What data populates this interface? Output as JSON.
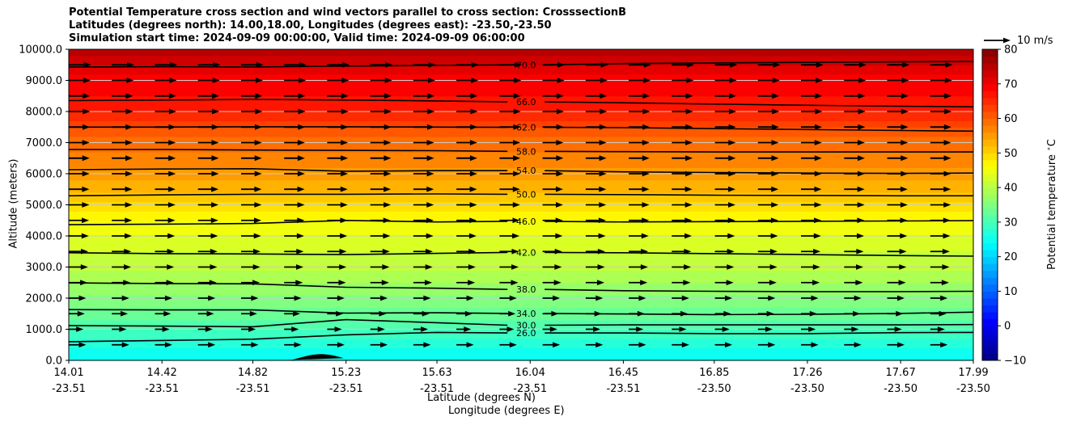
{
  "title": {
    "line1": "Potential Temperature cross section and wind vectors parallel to cross section: CrosssectionB",
    "line2": "Latitudes (degrees north): 14.00,18.00, Longitudes (degrees east): -23.50,-23.50",
    "line3": "Simulation start time: 2024-09-09 00:00:00, Valid time: 2024-09-09 06:00:00"
  },
  "axes": {
    "xlabel_lat": "Latitude (degrees N)",
    "xlabel_lon": "Longitude (degrees E)",
    "ylabel": "Altitude (meters)",
    "colorbar_label": "Potential temperature $^\\circ$C",
    "quiver_key_label": "10 m/s"
  },
  "chart_data": {
    "type": "contour_cross_section",
    "colormap": "jet",
    "x_ticks_lat": [
      "14.01",
      "14.42",
      "14.82",
      "15.23",
      "15.63",
      "16.04",
      "16.45",
      "16.85",
      "17.26",
      "17.67",
      "17.99"
    ],
    "x_ticks_lon": [
      "-23.51",
      "-23.51",
      "-23.51",
      "-23.51",
      "-23.51",
      "-23.51",
      "-23.51",
      "-23.50",
      "-23.50",
      "-23.50",
      "-23.50"
    ],
    "x_tick_values": [
      14.01,
      14.42,
      14.82,
      15.23,
      15.63,
      16.04,
      16.45,
      16.85,
      17.26,
      17.67,
      17.99
    ],
    "y_ticks": [
      "0.0",
      "1000.0",
      "2000.0",
      "3000.0",
      "4000.0",
      "5000.0",
      "6000.0",
      "7000.0",
      "8000.0",
      "9000.0",
      "10000.0"
    ],
    "y_tick_values": [
      0,
      1000,
      2000,
      3000,
      4000,
      5000,
      6000,
      7000,
      8000,
      9000,
      10000
    ],
    "ylim": [
      0,
      10000
    ],
    "xlim": [
      14.01,
      17.99
    ],
    "colorbar_ticks": [
      "−10",
      "0",
      "10",
      "20",
      "30",
      "40",
      "50",
      "60",
      "70",
      "80"
    ],
    "colorbar_tick_values": [
      -10,
      0,
      10,
      20,
      30,
      40,
      50,
      60,
      70,
      80
    ],
    "colorbar_range": [
      -10,
      80
    ],
    "temperature_profile": {
      "altitude": [
        0,
        500,
        1000,
        1500,
        2000,
        2500,
        3000,
        3500,
        4000,
        4500,
        5000,
        5500,
        6000,
        6500,
        7000,
        7500,
        8000,
        8500,
        9000,
        9500,
        10000
      ],
      "theta": [
        24,
        26.5,
        30,
        33,
        35.5,
        38.2,
        40.2,
        42,
        44.2,
        46,
        49,
        52.5,
        55,
        57,
        59,
        62,
        66,
        68,
        69,
        72,
        75
      ]
    },
    "contours": [
      {
        "label": "70.0",
        "level": 70,
        "altitude": [
          9430,
          9440,
          9430,
          9460,
          9480,
          9500,
          9540,
          9560,
          9580,
          9600,
          9610
        ]
      },
      {
        "label": "66.0",
        "level": 66,
        "altitude": [
          8350,
          8370,
          8390,
          8370,
          8340,
          8310,
          8280,
          8240,
          8200,
          8170,
          8150
        ]
      },
      {
        "label": "62.0",
        "level": 62,
        "altitude": [
          7500,
          7500,
          7510,
          7510,
          7500,
          7490,
          7480,
          7450,
          7420,
          7390,
          7370
        ]
      },
      {
        "label": "58.0",
        "level": 58,
        "altitude": [
          6780,
          6780,
          6760,
          6750,
          6740,
          6720,
          6710,
          6700,
          6700,
          6700,
          6700
        ]
      },
      {
        "label": "54.0",
        "level": 54,
        "altitude": [
          6130,
          6150,
          6160,
          6080,
          6100,
          6100,
          6060,
          6040,
          6020,
          6010,
          6020
        ]
      },
      {
        "label": "50.0",
        "level": 50,
        "altitude": [
          5290,
          5320,
          5340,
          5340,
          5350,
          5340,
          5330,
          5310,
          5300,
          5290,
          5290
        ]
      },
      {
        "label": "46.0",
        "level": 46,
        "altitude": [
          4360,
          4380,
          4400,
          4500,
          4450,
          4470,
          4450,
          4460,
          4470,
          4480,
          4490
        ]
      },
      {
        "label": "42.0",
        "level": 42,
        "altitude": [
          3460,
          3430,
          3420,
          3400,
          3440,
          3470,
          3460,
          3430,
          3400,
          3370,
          3350
        ]
      },
      {
        "label": "38.0",
        "level": 38,
        "altitude": [
          2490,
          2470,
          2460,
          2350,
          2320,
          2280,
          2240,
          2220,
          2210,
          2210,
          2220
        ]
      },
      {
        "label": "34.0",
        "level": 34,
        "altitude": [
          1630,
          1620,
          1620,
          1520,
          1530,
          1510,
          1490,
          1470,
          1480,
          1510,
          1550
        ]
      },
      {
        "label": "30.0",
        "level": 30,
        "altitude": [
          1120,
          1100,
          1080,
          1310,
          1210,
          1130,
          1140,
          1140,
          1140,
          1140,
          1150
        ]
      },
      {
        "label": "26.0",
        "level": 26,
        "altitude": [
          600,
          640,
          680,
          820,
          900,
          880,
          880,
          860,
          860,
          890,
          900
        ]
      }
    ],
    "wind_vectors": {
      "rows_altitude": [
        500,
        1000,
        1500,
        2000,
        2500,
        3000,
        3500,
        4000,
        4500,
        5000,
        5500,
        6000,
        6500,
        7000,
        7500,
        8000,
        8500,
        9000,
        9500
      ],
      "speed_m_s": [
        6.5,
        5.5,
        6,
        6.5,
        7,
        7.2,
        7.3,
        7.5,
        7.6,
        7.7,
        7.7,
        7.8,
        7.8,
        7.8,
        7.9,
        8,
        8,
        8.2,
        8.4
      ],
      "direction": "parallel, toward increasing latitude",
      "key_speed_m_s": 10
    },
    "terrain": {
      "peak_latitude": 15.12,
      "peak_altitude": 200,
      "start_latitude": 14.92,
      "end_latitude": 15.22
    }
  }
}
